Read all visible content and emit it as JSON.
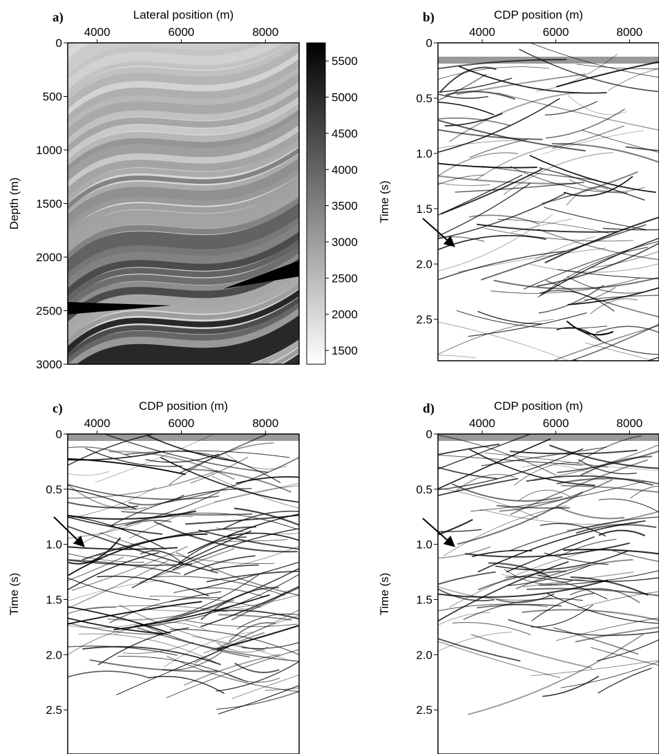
{
  "chart_data": [
    {
      "type": "image",
      "panel_label": "a)",
      "title": "Lateral position (m)",
      "y_label": "Depth (m)",
      "xlim": [
        3300,
        8800
      ],
      "xticks": [
        4000,
        6000,
        8000
      ],
      "ylim": [
        0,
        3000
      ],
      "yticks": [
        0,
        500,
        1000,
        1500,
        2000,
        2500,
        3000
      ],
      "y_inverted": true,
      "colorbar": {
        "clim": [
          1310,
          5750
        ],
        "ticks": [
          1500,
          2000,
          2500,
          3000,
          3500,
          4000,
          4500,
          5000,
          5500
        ]
      }
    },
    {
      "type": "image",
      "panel_label": "b)",
      "title": "CDP position (m)",
      "y_label": "Time (s)",
      "xlim": [
        2800,
        8800
      ],
      "xticks": [
        4000,
        6000,
        8000
      ],
      "ylim": [
        0,
        2.875
      ],
      "yticks": [
        0,
        0.5,
        {
          "value": 1,
          "label": "1.0"
        },
        1.5,
        {
          "value": 2,
          "label": "2.0"
        },
        2.5
      ],
      "y_inverted": true
    },
    {
      "type": "image",
      "panel_label": "c)",
      "title": "CDP position (m)",
      "y_label": "Time (s)",
      "xlim": [
        3300,
        8800
      ],
      "xticks": [
        4000,
        6000,
        8000
      ],
      "ylim": [
        0,
        2.9
      ],
      "yticks": [
        0,
        0.5,
        {
          "value": 1,
          "label": "1.0"
        },
        1.5,
        {
          "value": 2,
          "label": "2.0"
        },
        2.5
      ],
      "y_inverted": true
    },
    {
      "type": "image",
      "panel_label": "d)",
      "title": "CDP position (m)",
      "y_label": "Time (s)",
      "xlim": [
        2800,
        8800
      ],
      "xticks": [
        4000,
        6000,
        8000
      ],
      "ylim": [
        0,
        2.9
      ],
      "yticks": [
        0,
        0.5,
        {
          "value": 1,
          "label": "1.0"
        },
        1.5,
        {
          "value": 2,
          "label": "2.0"
        },
        2.5
      ],
      "y_inverted": true
    }
  ]
}
